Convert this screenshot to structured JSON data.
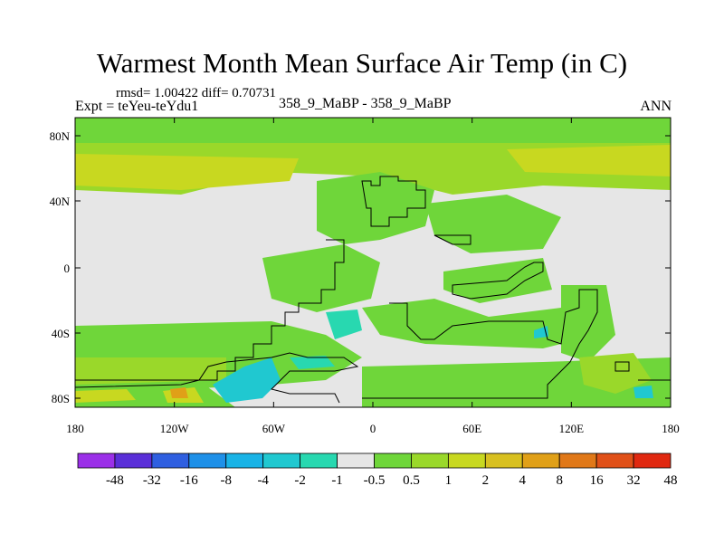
{
  "title": "Warmest Month Mean Surface Air Temp (in C)",
  "stats": "rmsd= 1.00422 diff= 0.70731",
  "expt": "Expt = teYeu-teYdu1",
  "subtitle": "358_9_MaBP - 358_9_MaBP",
  "season": "ANN",
  "lat_labels": [
    "80N",
    "40N",
    "0",
    "40S",
    "80S"
  ],
  "lon_labels": [
    "180",
    "120W",
    "60W",
    "0",
    "60E",
    "120E",
    "180"
  ],
  "colorbar": {
    "colors": [
      "#9b30e8",
      "#5a2fd8",
      "#2f5fe0",
      "#1e90e8",
      "#19b3e6",
      "#20c8d0",
      "#28d8b0",
      "#e6e6e6",
      "#6fd63a",
      "#9ad82a",
      "#c8d820",
      "#d8c020",
      "#e0a018",
      "#e07818",
      "#e05018",
      "#e02810"
    ],
    "labels": [
      "-48",
      "-32",
      "-16",
      "-8",
      "-4",
      "-2",
      "-1",
      "-0.5",
      "0.5",
      "1",
      "2",
      "4",
      "8",
      "16",
      "32",
      "48"
    ]
  },
  "map_colors": {
    "ocean_neutral": "#e6e6e6",
    "green": "#6fd63a",
    "yellowgreen": "#9ad82a",
    "yellow": "#c8d820",
    "orange": "#e0a018",
    "cyan": "#20c8d0",
    "lightcyan": "#28d8b0",
    "coast": "#000000"
  }
}
